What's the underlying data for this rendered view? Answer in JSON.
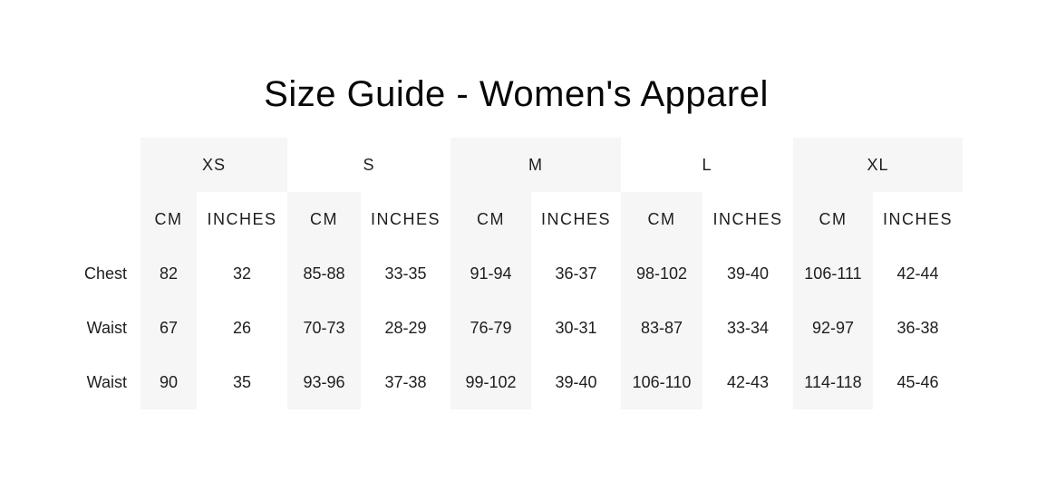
{
  "page": {
    "title": "Size Guide - Women's Apparel"
  },
  "colors": {
    "background": "#ffffff",
    "stripe": "#f6f6f6",
    "text": "#1e1e1e"
  },
  "table": {
    "units": {
      "cm": "CM",
      "inches": "INCHES"
    },
    "size_groups": [
      {
        "label": "XS"
      },
      {
        "label": "S"
      },
      {
        "label": "M"
      },
      {
        "label": "L"
      },
      {
        "label": "XL"
      }
    ],
    "rows": [
      {
        "label": "Chest",
        "cells": [
          {
            "cm": "82",
            "inches": "32"
          },
          {
            "cm": "85-88",
            "inches": "33-35"
          },
          {
            "cm": "91-94",
            "inches": "36-37"
          },
          {
            "cm": "98-102",
            "inches": "39-40"
          },
          {
            "cm": "106-111",
            "inches": "42-44"
          }
        ]
      },
      {
        "label": "Waist",
        "cells": [
          {
            "cm": "67",
            "inches": "26"
          },
          {
            "cm": "70-73",
            "inches": "28-29"
          },
          {
            "cm": "76-79",
            "inches": "30-31"
          },
          {
            "cm": "83-87",
            "inches": "33-34"
          },
          {
            "cm": "92-97",
            "inches": "36-38"
          }
        ]
      },
      {
        "label": "Waist",
        "cells": [
          {
            "cm": "90",
            "inches": "35"
          },
          {
            "cm": "93-96",
            "inches": "37-38"
          },
          {
            "cm": "99-102",
            "inches": "39-40"
          },
          {
            "cm": "106-110",
            "inches": "42-43"
          },
          {
            "cm": "114-118",
            "inches": "45-46"
          }
        ]
      }
    ]
  }
}
